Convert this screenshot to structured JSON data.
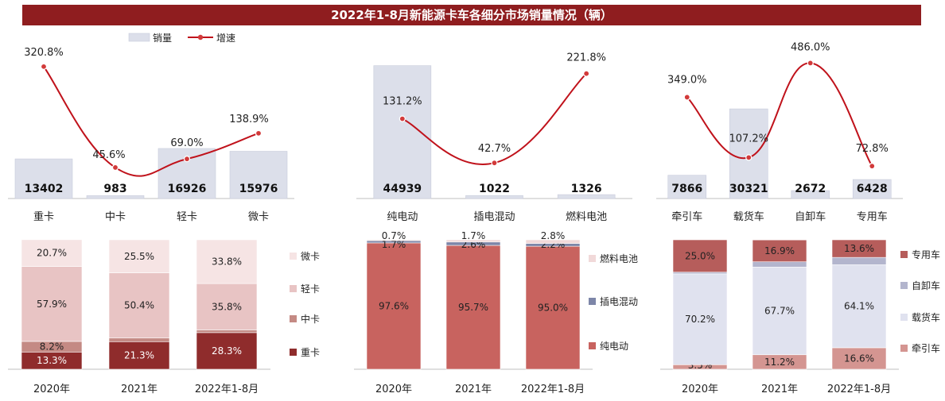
{
  "title": "2022年1-8月新能源卡车各细分市场销量情况（辆）",
  "colors": {
    "title_bg": "#8f1d1f",
    "bar": "#dcdfea",
    "bar_edge": "#c8ccdb",
    "line": "#c0121b",
    "point_fill": "#d23a3a",
    "heavy": "#8f2c2c",
    "medium": "#c48a84",
    "light": "#e8c4c4",
    "micro": "#f6e4e4",
    "bev": "#c8635f",
    "phev": "#7d86a8",
    "fcev": "#f1d9d9",
    "tractor": "#d49591",
    "cargo": "#e0e2ef",
    "dump": "#b3b5cd",
    "special": "#b65d5b"
  },
  "chart_data": [
    {
      "type": "bar",
      "categories": [
        "重卡",
        "中卡",
        "轻卡",
        "微卡"
      ],
      "series": [
        {
          "name": "销量",
          "values": [
            13402,
            983,
            16926,
            15976
          ]
        },
        {
          "name": "增速",
          "type": "line",
          "values": [
            320.8,
            45.6,
            69.0,
            138.9
          ],
          "labels": [
            "320.8%",
            "45.6%",
            "69.0%",
            "138.9%"
          ]
        }
      ],
      "legend": [
        "销量",
        "增速"
      ]
    },
    {
      "type": "bar",
      "categories": [
        "纯电动",
        "插电混动",
        "燃料电池"
      ],
      "series": [
        {
          "name": "销量",
          "values": [
            44939,
            1022,
            1326
          ]
        },
        {
          "name": "增速",
          "type": "line",
          "values": [
            131.2,
            42.7,
            221.8
          ],
          "labels": [
            "131.2%",
            "42.7%",
            "221.8%"
          ]
        }
      ]
    },
    {
      "type": "bar",
      "categories": [
        "牵引车",
        "载货车",
        "自卸车",
        "专用车"
      ],
      "series": [
        {
          "name": "销量",
          "values": [
            7866,
            30321,
            2672,
            6428
          ]
        },
        {
          "name": "增速",
          "type": "line",
          "values": [
            349.0,
            107.2,
            486.0,
            72.8
          ],
          "labels": [
            "349.0%",
            "107.2%",
            "486.0%",
            "72.8%"
          ]
        }
      ]
    },
    {
      "type": "bar",
      "stacked": true,
      "categories": [
        "2020年",
        "2021年",
        "2022年1-8月"
      ],
      "series": [
        {
          "name": "重卡",
          "values": [
            13.3,
            21.3,
            28.3
          ],
          "labels": [
            "13.3%",
            "21.3%",
            "28.3%"
          ]
        },
        {
          "name": "中卡",
          "values": [
            8.2,
            2.8,
            2.1
          ],
          "labels": [
            "8.2%",
            "2.8%",
            "2.1%"
          ]
        },
        {
          "name": "轻卡",
          "values": [
            57.9,
            50.4,
            35.8
          ],
          "labels": [
            "57.9%",
            "50.4%",
            "35.8%"
          ]
        },
        {
          "name": "微卡",
          "values": [
            20.7,
            25.5,
            33.8
          ],
          "labels": [
            "20.7%",
            "25.5%",
            "33.8%"
          ]
        }
      ]
    },
    {
      "type": "bar",
      "stacked": true,
      "categories": [
        "2020年",
        "2021年",
        "2022年1-8月"
      ],
      "series": [
        {
          "name": "纯电动",
          "values": [
            97.6,
            95.7,
            95.0
          ],
          "labels": [
            "97.6%",
            "95.7%",
            "95.0%"
          ]
        },
        {
          "name": "插电混动",
          "values": [
            1.7,
            2.6,
            2.2
          ],
          "labels": [
            "1.7%",
            "2.6%",
            "2.2%"
          ]
        },
        {
          "name": "燃料电池",
          "values": [
            0.7,
            1.7,
            2.8
          ],
          "labels": [
            "0.7%",
            "1.7%",
            "2.8%"
          ]
        }
      ]
    },
    {
      "type": "bar",
      "stacked": true,
      "categories": [
        "2020年",
        "2021年",
        "2022年1-8月"
      ],
      "series": [
        {
          "name": "牵引车",
          "values": [
            3.5,
            11.2,
            16.6
          ],
          "labels": [
            "3.5%",
            "11.2%",
            "16.6%"
          ]
        },
        {
          "name": "载货车",
          "values": [
            70.2,
            67.7,
            64.1
          ],
          "labels": [
            "70.2%",
            "67.7%",
            "64.1%"
          ]
        },
        {
          "name": "自卸车",
          "values": [
            1.3,
            4.1,
            5.7
          ],
          "labels": [
            "1.3%",
            "4.1%",
            "5.7%"
          ]
        },
        {
          "name": "专用车",
          "values": [
            25.0,
            16.9,
            13.6
          ],
          "labels": [
            "25.0%",
            "16.9%",
            "13.6%"
          ]
        }
      ]
    }
  ]
}
